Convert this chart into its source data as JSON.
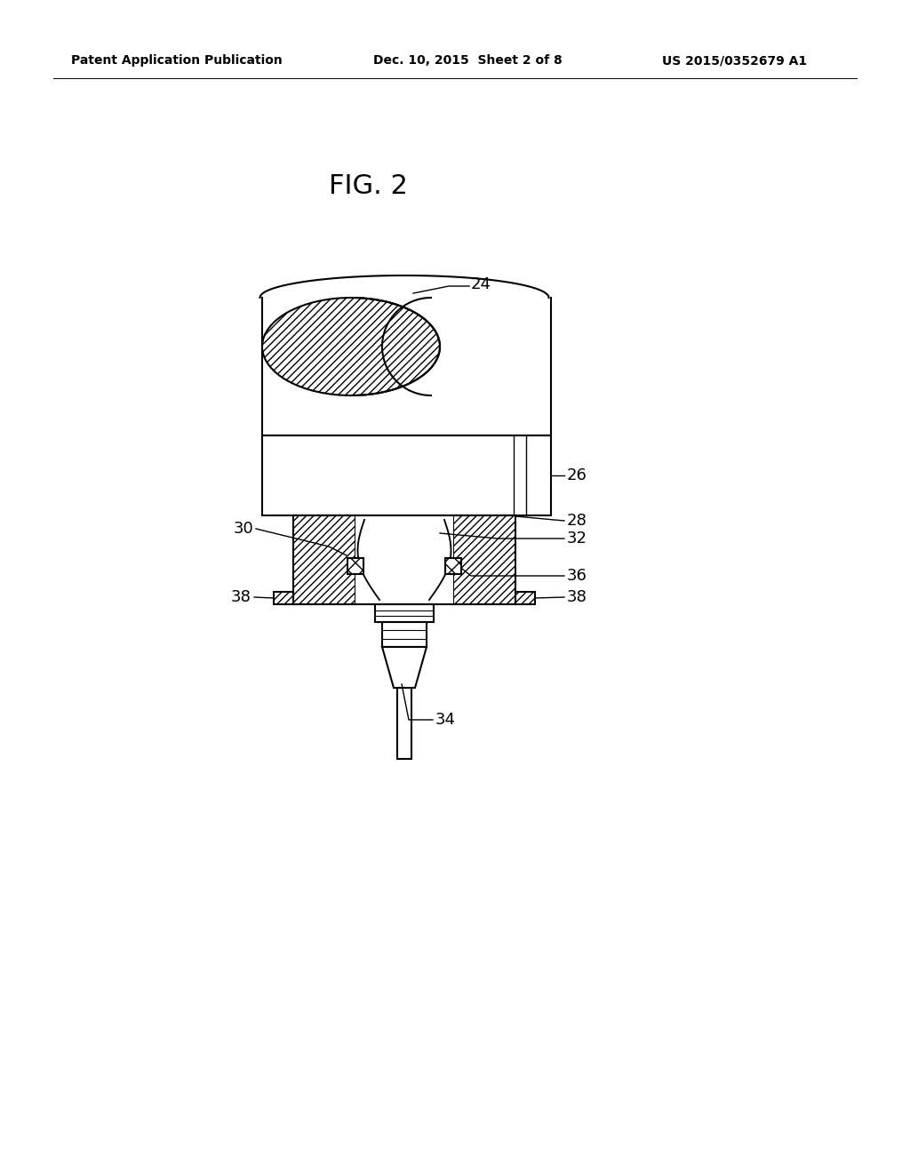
{
  "background_color": "#ffffff",
  "header_left": "Patent Application Publication",
  "header_center": "Dec. 10, 2015  Sheet 2 of 8",
  "header_right": "US 2015/0352679 A1",
  "fig_label": "FIG. 2"
}
